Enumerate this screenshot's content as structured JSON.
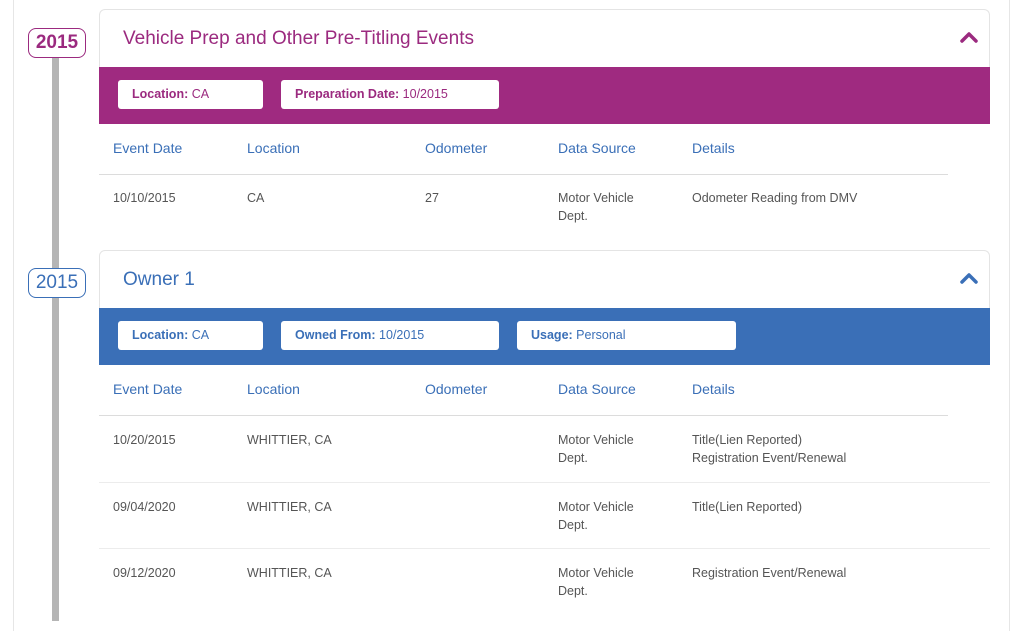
{
  "timeline": {
    "badge_1": "2015",
    "badge_2": "2015"
  },
  "columns": [
    "Event Date",
    "Location",
    "Odometer",
    "Data Source",
    "Details"
  ],
  "section_1": {
    "title": "Vehicle Prep and Other Pre-Titling Events",
    "color": "#9f2a80",
    "pills": [
      {
        "label": "Location:",
        "value": " CA"
      },
      {
        "label": "Preparation Date:",
        "value": " 10/2015"
      }
    ],
    "rows": [
      {
        "date": "10/10/2015",
        "location": "CA",
        "odometer": "27",
        "source_1": "Motor Vehicle",
        "source_2": "Dept.",
        "details_1": "Odometer Reading from DMV",
        "details_2": ""
      }
    ]
  },
  "section_2": {
    "title": "Owner 1",
    "color": "#3a6fb7",
    "pills": [
      {
        "label": "Location:",
        "value": " CA"
      },
      {
        "label": "Owned From:",
        "value": " 10/2015"
      },
      {
        "label": "Usage:",
        "value": " Personal"
      }
    ],
    "rows": [
      {
        "date": "10/20/2015",
        "location": "WHITTIER, CA",
        "odometer": "",
        "source_1": "Motor Vehicle",
        "source_2": "Dept.",
        "details_1": "Title(Lien Reported)",
        "details_2": "Registration Event/Renewal"
      },
      {
        "date": "09/04/2020",
        "location": "WHITTIER, CA",
        "odometer": "",
        "source_1": "Motor Vehicle",
        "source_2": "Dept.",
        "details_1": "Title(Lien Reported)",
        "details_2": ""
      },
      {
        "date": "09/12/2020",
        "location": "WHITTIER, CA",
        "odometer": "",
        "source_1": "Motor Vehicle",
        "source_2": "Dept.",
        "details_1": "Registration Event/Renewal",
        "details_2": ""
      }
    ]
  },
  "icons": {
    "collapse": "chevron-up-icon"
  }
}
